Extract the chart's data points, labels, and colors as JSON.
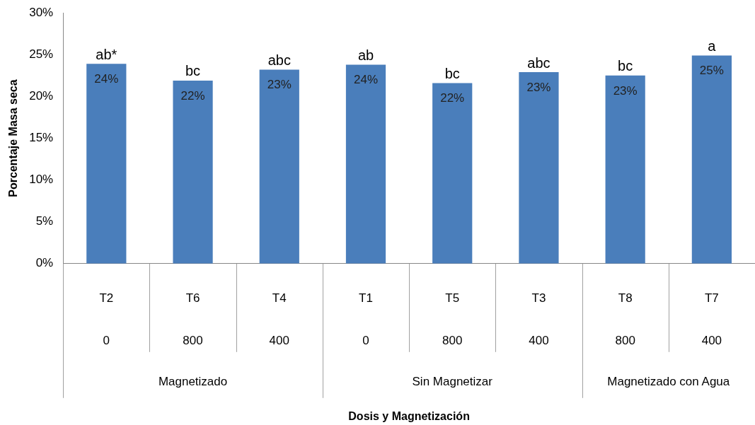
{
  "chart_data": {
    "type": "bar",
    "ylabel": "Porcentaje Masa seca",
    "categories": [
      "T2\n0",
      "T6\n800",
      "T4\n400",
      "T1\n0",
      "T5\n800",
      "T3\n400",
      "T8\n800",
      "T7\n400"
    ],
    "values": [
      23.9,
      21.9,
      23.2,
      23.8,
      21.6,
      22.9,
      22.5,
      24.9
    ],
    "value_labels": [
      "24%",
      "22%",
      "23%",
      "24%",
      "22%",
      "23%",
      "23%",
      "25%"
    ],
    "color": "#4a7ebb",
    "ylim": [
      0,
      30
    ],
    "yticks": [
      {
        "value": 0,
        "label": "0%"
      },
      {
        "value": 5,
        "label": "5%"
      },
      {
        "value": 10,
        "label": "10%"
      },
      {
        "value": 15,
        "label": "15%"
      },
      {
        "value": 20,
        "label": "20%"
      },
      {
        "value": 25,
        "label": "25%"
      },
      {
        "value": 30,
        "label": "30%"
      }
    ],
    "grid": false,
    "annotations": [
      {
        "text": "ab*",
        "x": "T2\n0",
        "y": 23.9
      },
      {
        "text": "bc",
        "x": "T6\n800",
        "y": 21.9
      },
      {
        "text": "abc",
        "x": "T4\n400",
        "y": 23.2
      },
      {
        "text": "ab",
        "x": "T1\n0",
        "y": 23.8
      },
      {
        "text": "bc",
        "x": "T5\n800",
        "y": 21.6
      },
      {
        "text": "abc",
        "x": "T3\n400",
        "y": 22.9
      },
      {
        "text": "bc",
        "x": "T8\n800",
        "y": 22.5
      },
      {
        "text": "a",
        "x": "T7\n400",
        "y": 24.9
      },
      "Magnetizado",
      "Sin Magnetizar",
      "Magnetizado con Agua",
      "Dosis y Magnetización"
    ]
  }
}
